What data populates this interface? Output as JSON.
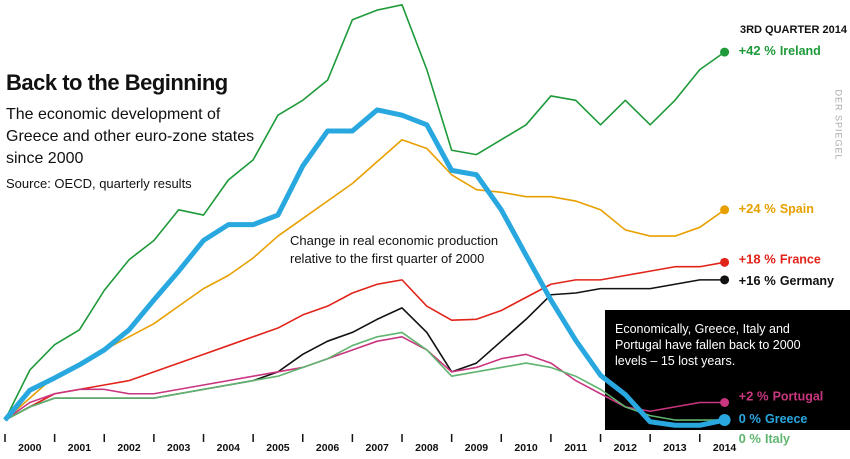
{
  "chart_data": {
    "type": "line",
    "title": "Back to the Beginning",
    "subtitle": "The economic development of Greece and other euro-zone states since 2000",
    "source": "Source: OECD, quarterly results",
    "date_label": "3RD QUARTER 2014",
    "annotation": "Change in real economic production relative to the first quarter of 2000",
    "callout": "Economically, Greece, Italy and Portugal have fallen back to 2000 levels – 15 lost years.",
    "watermark": "DER SPIEGEL",
    "x": [
      2000,
      2000.5,
      2001,
      2001.5,
      2002,
      2002.5,
      2003,
      2003.5,
      2004,
      2004.5,
      2005,
      2005.5,
      2006,
      2006.5,
      2007,
      2007.5,
      2008,
      2008.5,
      2009,
      2009.5,
      2010,
      2010.5,
      2011,
      2011.5,
      2012,
      2012.5,
      2013,
      2013.5,
      2014,
      2014.5
    ],
    "xlim": [
      2000,
      2014.75
    ],
    "xticks": [
      2000,
      2001,
      2002,
      2003,
      2004,
      2005,
      2006,
      2007,
      2008,
      2009,
      2010,
      2011,
      2012,
      2013,
      2014
    ],
    "ylim": [
      -4.45,
      47.95
    ],
    "series": [
      {
        "name": "Ireland",
        "color": "#1e9a3a",
        "values": [
          0,
          5.7,
          8.6,
          10.3,
          14.8,
          18.3,
          20.5,
          24,
          23.4,
          27.4,
          29.7,
          34.8,
          36.5,
          38.8,
          45.7,
          46.8,
          47.4,
          40,
          30.8,
          30.3,
          32,
          33.7,
          37,
          36.5,
          33.7,
          36.5,
          33.7,
          36.5,
          40,
          42
        ],
        "value_labels": [
          null,
          null,
          null,
          null,
          null,
          null,
          null,
          null,
          null,
          null,
          null,
          null,
          null,
          null,
          null,
          null,
          null,
          null,
          null,
          null,
          null,
          null,
          null,
          null,
          null,
          null,
          null,
          null,
          null,
          "+42 %"
        ]
      },
      {
        "name": "Spain",
        "color": "#e8a000",
        "values": [
          0,
          2.5,
          5,
          6.5,
          8,
          9.5,
          11,
          13,
          15,
          16.5,
          18.5,
          21,
          23,
          25,
          27,
          29.5,
          32,
          31,
          28,
          26.3,
          26,
          25.5,
          25.5,
          25,
          24,
          21.7,
          21,
          21,
          22,
          24
        ],
        "value_labels": [
          null,
          null,
          null,
          null,
          null,
          null,
          null,
          null,
          null,
          null,
          null,
          null,
          null,
          null,
          null,
          null,
          null,
          null,
          null,
          null,
          null,
          null,
          null,
          null,
          null,
          null,
          null,
          null,
          null,
          "+24 %"
        ]
      },
      {
        "name": "France",
        "color": "#e2231a",
        "values": [
          0,
          1.5,
          3,
          3.5,
          4,
          4.5,
          5.5,
          6.5,
          7.5,
          8.5,
          9.5,
          10.5,
          12,
          13,
          14.5,
          15.5,
          16,
          13,
          11.4,
          11.5,
          12.5,
          14,
          15.5,
          16,
          16,
          16.5,
          17,
          17.5,
          17.5,
          18
        ],
        "value_labels": [
          null,
          null,
          null,
          null,
          null,
          null,
          null,
          null,
          null,
          null,
          null,
          null,
          null,
          null,
          null,
          null,
          null,
          null,
          null,
          null,
          null,
          null,
          null,
          null,
          null,
          null,
          null,
          null,
          null,
          "+18 %"
        ]
      },
      {
        "name": "Germany",
        "color": "#111111",
        "values": [
          0,
          1.5,
          2.5,
          2.5,
          2.5,
          2.5,
          2.5,
          3,
          3.5,
          4,
          4.5,
          5.5,
          7.5,
          9,
          10,
          11.5,
          12.8,
          10,
          5.5,
          6.5,
          9,
          11.5,
          14.3,
          14.5,
          15,
          15,
          15,
          15.5,
          16,
          16
        ],
        "value_labels": [
          null,
          null,
          null,
          null,
          null,
          null,
          null,
          null,
          null,
          null,
          null,
          null,
          null,
          null,
          null,
          null,
          null,
          null,
          null,
          null,
          null,
          null,
          null,
          null,
          null,
          null,
          null,
          null,
          null,
          "+16 %"
        ]
      },
      {
        "name": "Portugal",
        "color": "#c8367f",
        "values": [
          0,
          2,
          3,
          3.5,
          3.5,
          3,
          3,
          3.5,
          4,
          4.5,
          5,
          5.5,
          6,
          7,
          8,
          9,
          9.5,
          8,
          5.5,
          6,
          7,
          7.5,
          6.5,
          4.5,
          3,
          1.5,
          1,
          1.5,
          2,
          2
        ],
        "value_labels": [
          null,
          null,
          null,
          null,
          null,
          null,
          null,
          null,
          null,
          null,
          null,
          null,
          null,
          null,
          null,
          null,
          null,
          null,
          null,
          null,
          null,
          null,
          null,
          null,
          null,
          null,
          null,
          null,
          null,
          "+2 %"
        ]
      },
      {
        "name": "Italy",
        "color": "#5fb56f",
        "values": [
          0,
          1.5,
          2.5,
          2.5,
          2.5,
          2.5,
          2.5,
          3,
          3.5,
          4,
          4.5,
          5,
          6,
          7,
          8.5,
          9.5,
          10,
          8,
          5,
          5.5,
          6,
          6.5,
          6,
          5,
          3.5,
          1.5,
          0.5,
          0,
          0,
          0
        ],
        "value_labels": [
          null,
          null,
          null,
          null,
          null,
          null,
          null,
          null,
          null,
          null,
          null,
          null,
          null,
          null,
          null,
          null,
          null,
          null,
          null,
          null,
          null,
          null,
          null,
          null,
          null,
          null,
          null,
          null,
          null,
          "0 %"
        ]
      },
      {
        "name": "Greece",
        "color": "#29a8e0",
        "values": [
          0,
          3.4,
          4.8,
          6.3,
          8,
          10.3,
          13.7,
          17,
          20.5,
          22.3,
          22.3,
          23.4,
          29,
          33,
          33,
          35.4,
          34.8,
          33.7,
          28.5,
          28,
          24,
          18.8,
          13.7,
          9.1,
          5.1,
          2.9,
          -0.2,
          -0.6,
          -0.6,
          0
        ],
        "value_labels": [
          null,
          null,
          null,
          null,
          null,
          null,
          null,
          null,
          null,
          null,
          null,
          null,
          null,
          null,
          null,
          null,
          null,
          null,
          null,
          null,
          null,
          null,
          null,
          null,
          null,
          null,
          null,
          null,
          null,
          "0 %"
        ]
      }
    ]
  }
}
